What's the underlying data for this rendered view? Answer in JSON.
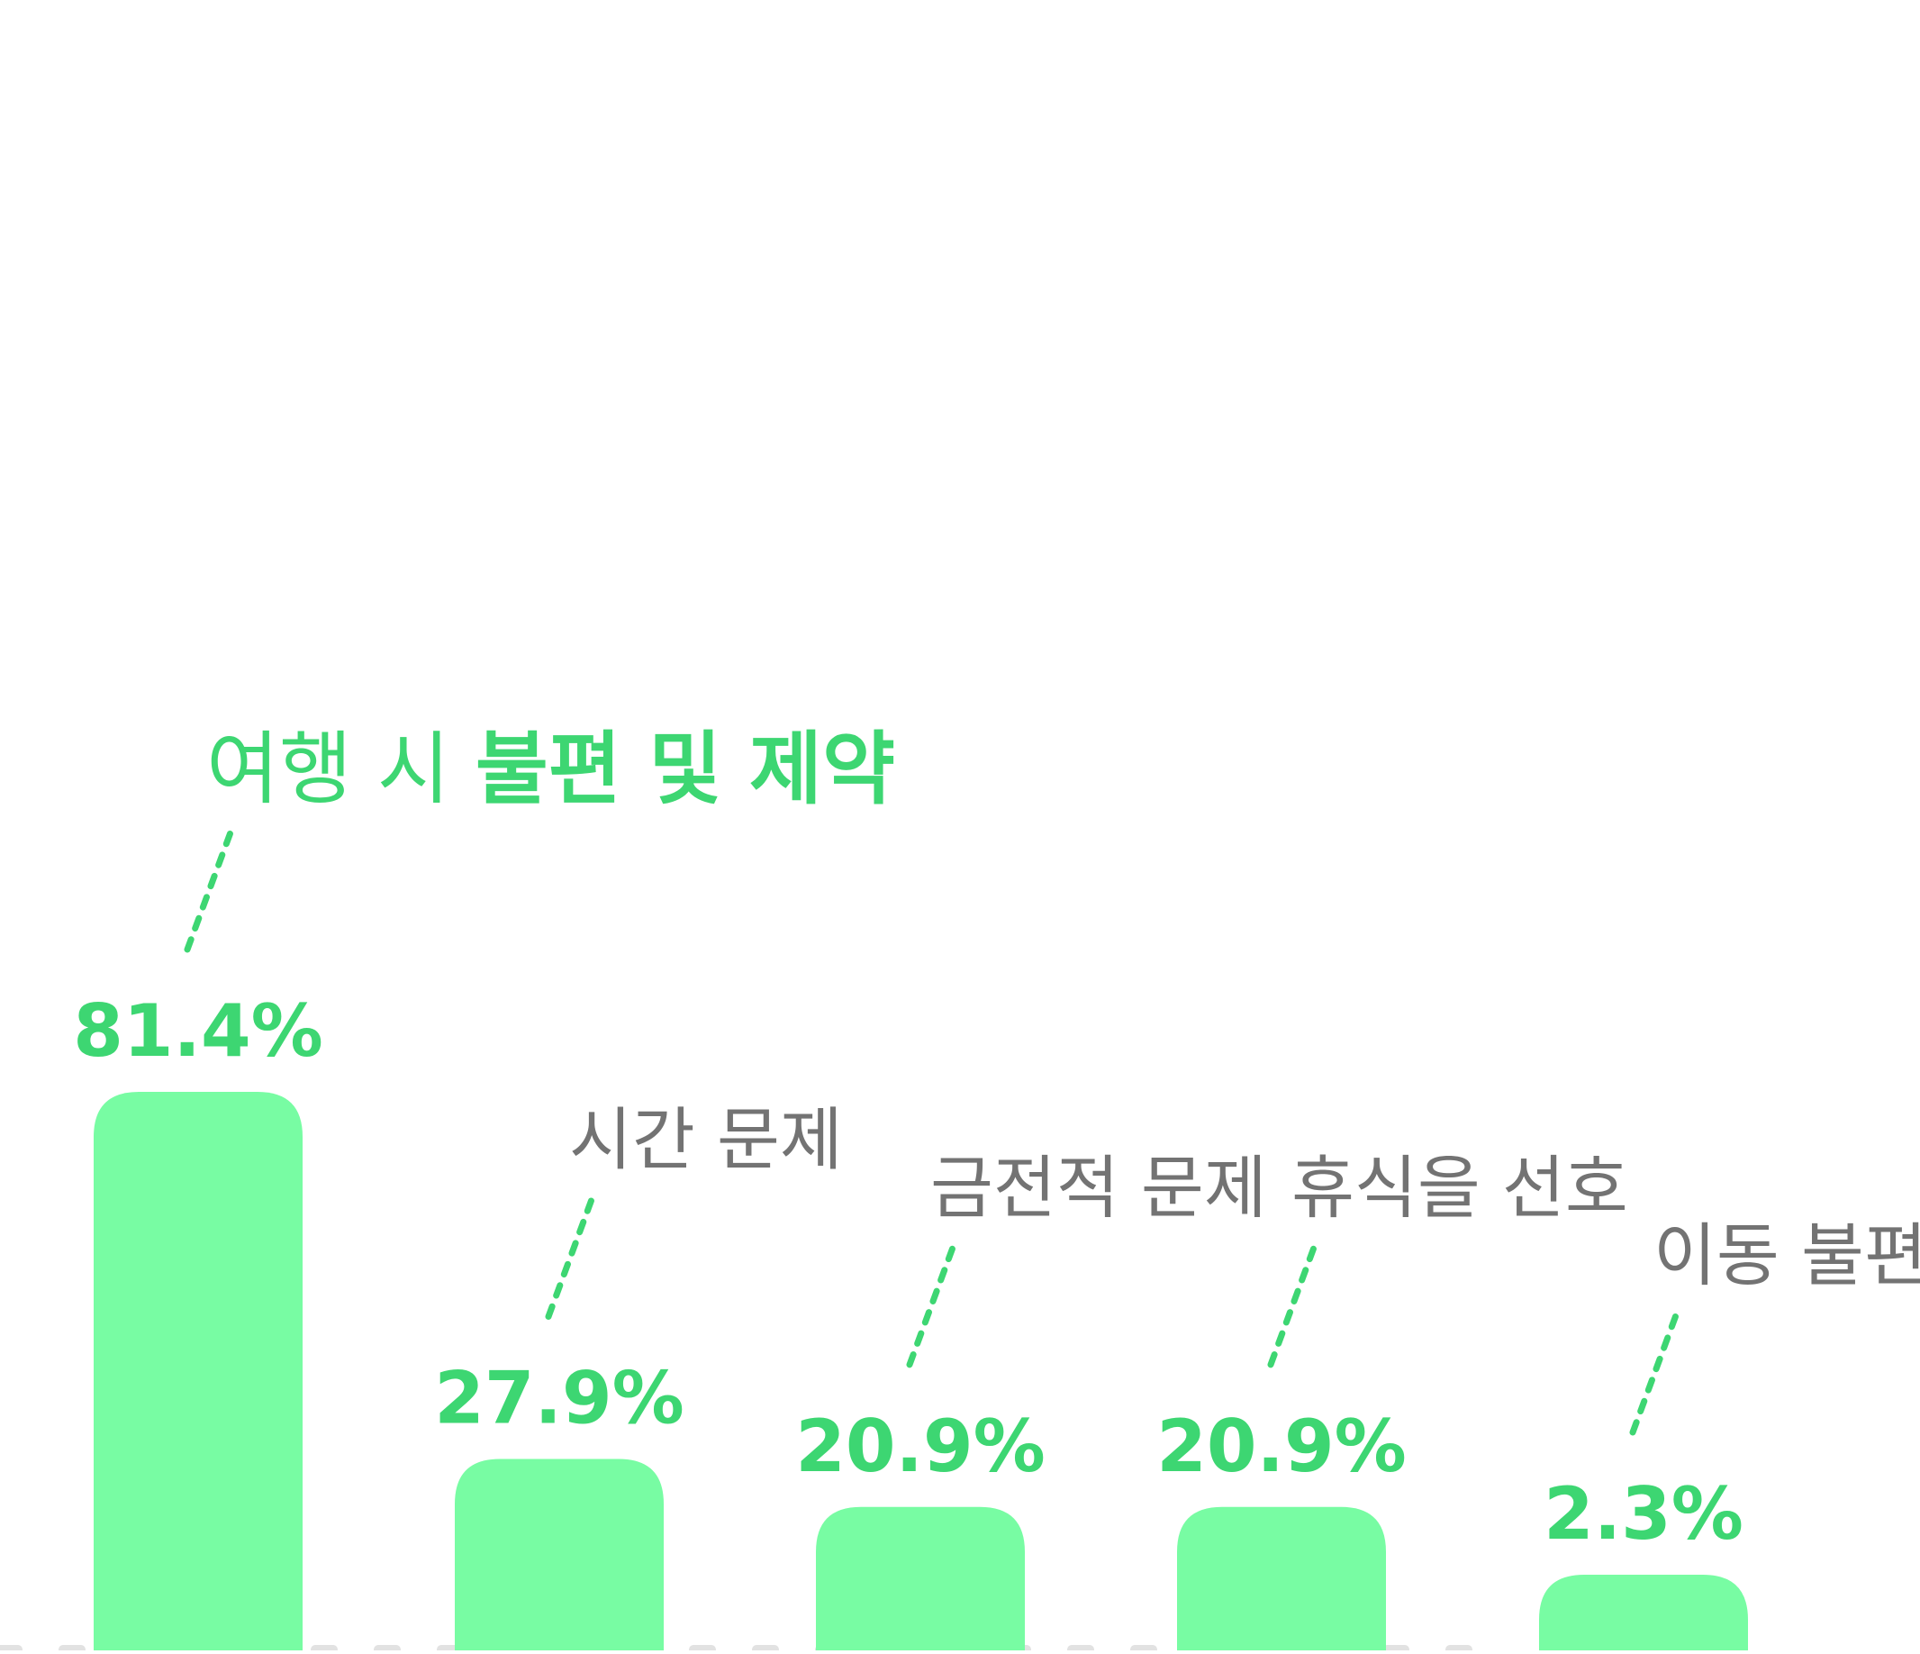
{
  "colors": {
    "bar": "#78fca3",
    "value_label": "#3dd672",
    "category_label": "#737373",
    "leader_line": "#3dd672",
    "baseline": "#e2e2e2",
    "background": "#ffffff"
  },
  "chart_data": {
    "type": "bar",
    "title_parts": [
      {
        "text": "여행 시 ",
        "weight": "normal"
      },
      {
        "text": "불편 및 제약",
        "weight": "bold"
      }
    ],
    "categories": [
      "여행 시 불편 및 제약",
      "시간 문제",
      "금전적 문제",
      "휴식을 선호",
      "이동 불편"
    ],
    "values": [
      81.4,
      27.9,
      20.9,
      20.9,
      2.3
    ],
    "value_labels": [
      "81.4%",
      "27.9%",
      "20.9%",
      "20.9%",
      "2.3%"
    ],
    "unit": "%",
    "ylim": [
      0,
      100
    ],
    "grid": false,
    "legend": "none",
    "baseline": "dashed"
  }
}
